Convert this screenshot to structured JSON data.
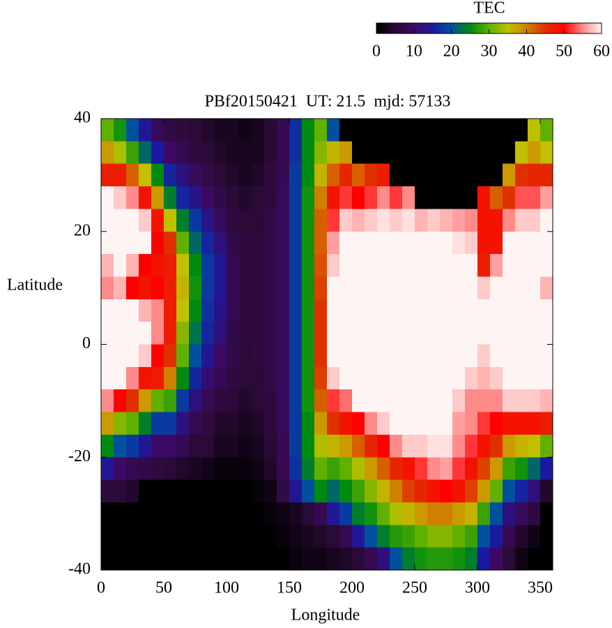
{
  "chart_data": {
    "type": "heatmap",
    "title": "PBf20150421  UT: 21.5  mjd: 57133",
    "x_label": "Longitude",
    "y_label": "Latitude",
    "colorbar_label": "TEC",
    "xlim": [
      0,
      360
    ],
    "xticks": [
      0,
      50,
      100,
      150,
      200,
      250,
      300,
      350
    ],
    "ylim": [
      -40,
      40
    ],
    "yticks": [
      -40,
      -20,
      0,
      20,
      40
    ],
    "clim": [
      0,
      60
    ],
    "colorbar_ticks": [
      0,
      10,
      20,
      30,
      40,
      50,
      60
    ],
    "colormap": [
      "#000000",
      "#2a0a36",
      "#3c0a64",
      "#1a1aa0",
      "#0050a0",
      "#008a10",
      "#60b000",
      "#c0c000",
      "#d08000",
      "#e03000",
      "#ff0000",
      "#ff8a8a",
      "#fff4f4"
    ],
    "x": [
      5,
      15,
      25,
      35,
      45,
      55,
      65,
      75,
      85,
      95,
      105,
      115,
      125,
      135,
      145,
      155,
      165,
      175,
      185,
      195,
      205,
      215,
      225,
      235,
      245,
      255,
      265,
      275,
      285,
      295,
      305,
      315,
      325,
      335,
      345,
      355
    ],
    "y": [
      38,
      34,
      30,
      26,
      22,
      18,
      14,
      10,
      6,
      2,
      -2,
      -6,
      -10,
      -14,
      -18,
      -22,
      -26,
      -30,
      -34,
      -38
    ],
    "z": [
      [
        30,
        38,
        47,
        60,
        60,
        60,
        57,
        55,
        60,
        60,
        60,
        60,
        55,
        38,
        25,
        14,
        6,
        0,
        0,
        0
      ],
      [
        26,
        34,
        47,
        58,
        60,
        60,
        60,
        57,
        60,
        60,
        60,
        60,
        50,
        32,
        20,
        10,
        5,
        0,
        0,
        0
      ],
      [
        20,
        28,
        42,
        55,
        60,
        60,
        57,
        50,
        60,
        60,
        60,
        55,
        45,
        30,
        18,
        8,
        4,
        0,
        0,
        0
      ],
      [
        14,
        22,
        35,
        48,
        58,
        60,
        50,
        48,
        57,
        60,
        58,
        48,
        38,
        24,
        14,
        7,
        0,
        0,
        0,
        0
      ],
      [
        9,
        15,
        25,
        38,
        48,
        50,
        48,
        50,
        55,
        55,
        50,
        47,
        30,
        18,
        10,
        6,
        0,
        0,
        0,
        0
      ],
      [
        7,
        10,
        16,
        24,
        35,
        45,
        47,
        47,
        47,
        47,
        45,
        40,
        28,
        18,
        10,
        5,
        0,
        0,
        0,
        0
      ],
      [
        6,
        8,
        12,
        16,
        24,
        30,
        35,
        36,
        35,
        32,
        30,
        25,
        18,
        12,
        8,
        4,
        0,
        0,
        0,
        0
      ],
      [
        5,
        6,
        9,
        13,
        18,
        22,
        25,
        26,
        25,
        23,
        20,
        16,
        12,
        8,
        5,
        3,
        0,
        0,
        0,
        0
      ],
      [
        4,
        5,
        7,
        10,
        13,
        16,
        18,
        18,
        17,
        16,
        14,
        11,
        8,
        6,
        5,
        2,
        0,
        0,
        0,
        0
      ],
      [
        3,
        4,
        5,
        7,
        9,
        12,
        14,
        14,
        13,
        12,
        10,
        8,
        6,
        4,
        3,
        1,
        0,
        0,
        0,
        0
      ],
      [
        3,
        3,
        4,
        5,
        6,
        7,
        8,
        8,
        8,
        7,
        7,
        6,
        5,
        4,
        3,
        1,
        0,
        0,
        0,
        0
      ],
      [
        2,
        3,
        3,
        4,
        5,
        6,
        6,
        6,
        6,
        6,
        5,
        5,
        4,
        3,
        2,
        1,
        0,
        0,
        0,
        0
      ],
      [
        3,
        3,
        4,
        5,
        5,
        6,
        6,
        6,
        6,
        6,
        6,
        5,
        5,
        4,
        3,
        2,
        1,
        0,
        0,
        0
      ],
      [
        5,
        5,
        6,
        6,
        7,
        7,
        7,
        7,
        7,
        7,
        7,
        7,
        6,
        6,
        5,
        4,
        2,
        1,
        0,
        0
      ],
      [
        8,
        8,
        8,
        9,
        9,
        9,
        9,
        9,
        9,
        9,
        9,
        9,
        9,
        9,
        8,
        8,
        7,
        2,
        1,
        0
      ],
      [
        17,
        17,
        18,
        18,
        18,
        18,
        18,
        18,
        18,
        18,
        18,
        18,
        18,
        18,
        18,
        17,
        14,
        3,
        2,
        1
      ],
      [
        25,
        25,
        25,
        26,
        26,
        26,
        26,
        26,
        26,
        26,
        26,
        26,
        26,
        25,
        25,
        24,
        20,
        5,
        3,
        2
      ],
      [
        30,
        32,
        36,
        40,
        42,
        42,
        43,
        44,
        45,
        45,
        45,
        44,
        42,
        38,
        34,
        30,
        25,
        8,
        4,
        2
      ],
      [
        20,
        36,
        42,
        48,
        52,
        56,
        58,
        60,
        60,
        60,
        60,
        58,
        52,
        45,
        36,
        28,
        22,
        14,
        5,
        3
      ],
      [
        0,
        38,
        46,
        52,
        58,
        60,
        60,
        60,
        60,
        60,
        60,
        60,
        54,
        48,
        38,
        30,
        25,
        18,
        8,
        4
      ],
      [
        0,
        0,
        42,
        50,
        57,
        60,
        60,
        60,
        60,
        60,
        60,
        60,
        60,
        50,
        42,
        34,
        28,
        24,
        14,
        5
      ],
      [
        0,
        0,
        45,
        52,
        58,
        60,
        60,
        60,
        60,
        60,
        60,
        60,
        60,
        55,
        46,
        38,
        32,
        26,
        20,
        8
      ],
      [
        0,
        0,
        47,
        55,
        59,
        60,
        60,
        60,
        60,
        60,
        60,
        60,
        60,
        58,
        50,
        42,
        36,
        30,
        24,
        12
      ],
      [
        0,
        0,
        0,
        52,
        58,
        60,
        60,
        60,
        60,
        60,
        60,
        60,
        60,
        60,
        55,
        46,
        40,
        34,
        27,
        20
      ],
      [
        0,
        0,
        0,
        55,
        59,
        60,
        60,
        60,
        60,
        60,
        60,
        60,
        60,
        60,
        58,
        48,
        44,
        36,
        28,
        24
      ],
      [
        0,
        0,
        0,
        0,
        57,
        60,
        60,
        60,
        60,
        60,
        60,
        60,
        60,
        60,
        58,
        52,
        46,
        38,
        30,
        26
      ],
      [
        0,
        0,
        0,
        0,
        58,
        60,
        60,
        60,
        60,
        60,
        60,
        60,
        60,
        60,
        59,
        55,
        48,
        40,
        32,
        27
      ],
      [
        0,
        0,
        0,
        0,
        57,
        60,
        60,
        60,
        60,
        60,
        60,
        60,
        60,
        60,
        59,
        56,
        50,
        40,
        32,
        27
      ],
      [
        0,
        0,
        0,
        0,
        56,
        59,
        60,
        60,
        60,
        60,
        60,
        60,
        58,
        56,
        55,
        52,
        48,
        38,
        30,
        26
      ],
      [
        0,
        0,
        0,
        0,
        55,
        58,
        60,
        60,
        60,
        60,
        60,
        58,
        55,
        55,
        52,
        48,
        44,
        36,
        28,
        24
      ],
      [
        0,
        0,
        0,
        48,
        48,
        48,
        47,
        58,
        60,
        60,
        58,
        57,
        55,
        52,
        48,
        44,
        38,
        28,
        20,
        15
      ],
      [
        0,
        0,
        0,
        42,
        48,
        48,
        56,
        60,
        60,
        60,
        60,
        58,
        55,
        50,
        45,
        38,
        30,
        20,
        15,
        10
      ],
      [
        0,
        0,
        38,
        45,
        55,
        60,
        60,
        60,
        60,
        60,
        60,
        60,
        58,
        48,
        38,
        28,
        20,
        12,
        8,
        5
      ],
      [
        0,
        35,
        45,
        53,
        58,
        60,
        60,
        60,
        60,
        60,
        60,
        60,
        58,
        48,
        36,
        26,
        16,
        9,
        4,
        2
      ],
      [
        35,
        38,
        46,
        53,
        58,
        60,
        60,
        60,
        60,
        60,
        60,
        60,
        58,
        48,
        35,
        22,
        12,
        6,
        2,
        0
      ],
      [
        30,
        35,
        46,
        56,
        60,
        60,
        60,
        57,
        60,
        60,
        60,
        60,
        57,
        47,
        30,
        15,
        4,
        0,
        0,
        0
      ]
    ]
  }
}
